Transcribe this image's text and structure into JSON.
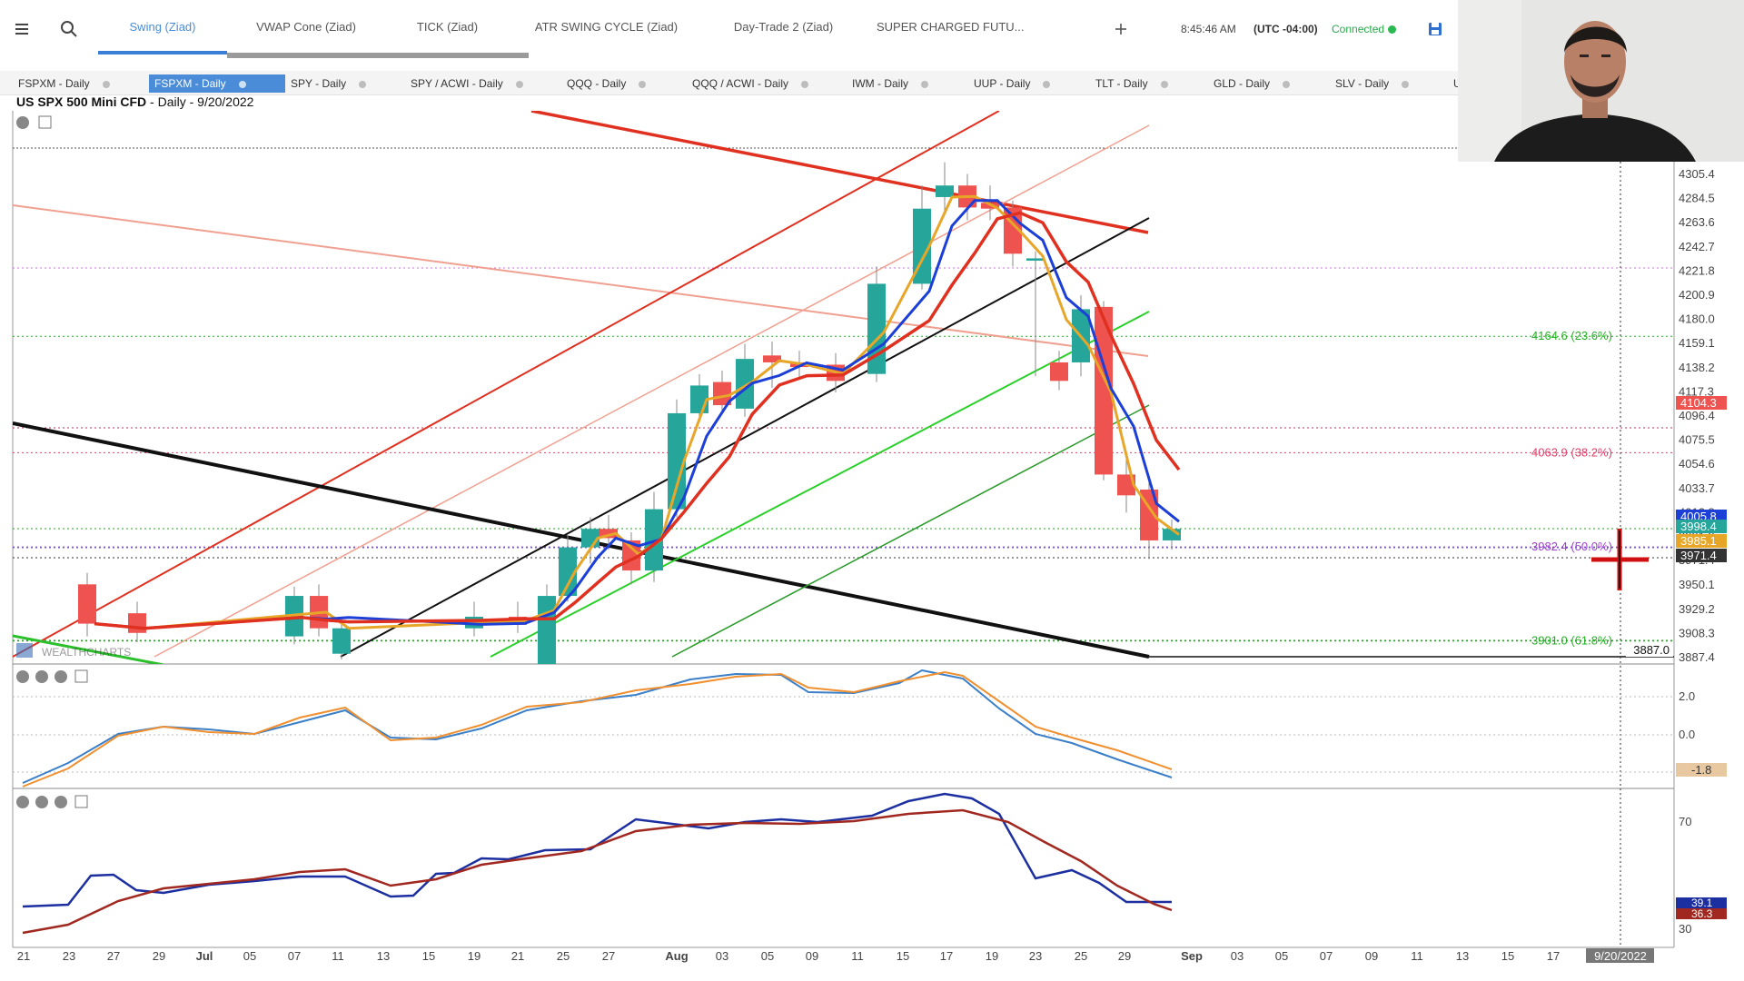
{
  "toolbar": {
    "menu_icon": "hamburger-icon",
    "search_icon": "search-icon",
    "tabs": [
      {
        "label": "Swing (Ziad)",
        "active": true
      },
      {
        "label": "VWAP Cone (Ziad)",
        "active": false
      },
      {
        "label": "TICK (Ziad)",
        "active": false
      },
      {
        "label": "ATR SWING CYCLE (Ziad)",
        "active": false
      },
      {
        "label": "Day-Trade 2 (Ziad)",
        "active": false
      },
      {
        "label": "SUPER CHARGED FUTU...",
        "active": false
      }
    ],
    "add_tab_icon": "plus-icon",
    "time": "8:45:46 AM",
    "timezone": "(UTC -04:00)",
    "connection": "Connected",
    "save_icon": "save-icon"
  },
  "symbols": [
    {
      "label": "FSPXM - Daily",
      "active": false
    },
    {
      "label": "FSPXM - Daily",
      "active": true
    },
    {
      "label": "SPY - Daily",
      "active": false
    },
    {
      "label": "SPY / ACWI - Daily",
      "active": false
    },
    {
      "label": "QQQ - Daily",
      "active": false
    },
    {
      "label": "QQQ / ACWI - Daily",
      "active": false
    },
    {
      "label": "IWM - Daily",
      "active": false
    },
    {
      "label": "UUP - Daily",
      "active": false
    },
    {
      "label": "TLT - Daily",
      "active": false
    },
    {
      "label": "GLD - Daily",
      "active": false
    },
    {
      "label": "SLV - Daily",
      "active": false
    },
    {
      "label": "U",
      "active": false
    }
  ],
  "chart": {
    "instrument": "US SPX 500 Mini CFD",
    "period": " - Daily - 9/20/2022",
    "watermark": "WEALTHCHARTS",
    "colors": {
      "up": "#26a69a",
      "down": "#ef5350",
      "ema_fast": "#e8a628",
      "ema_mid": "#1c3fd8",
      "ema_slow": "#e03020"
    }
  },
  "chart_data": {
    "type": "candlestick",
    "x_ticks": [
      "21",
      "23",
      "27",
      "29",
      "Jul",
      "05",
      "07",
      "11",
      "13",
      "15",
      "19",
      "21",
      "25",
      "27",
      "Aug",
      "03",
      "05",
      "09",
      "11",
      "15",
      "17",
      "19",
      "23",
      "25",
      "29",
      "Sep",
      "03",
      "05",
      "07",
      "09",
      "11",
      "13",
      "15",
      "17"
    ],
    "y_ticks": [
      4305.4,
      4284.5,
      4263.6,
      4242.7,
      4221.8,
      4200.9,
      4180.0,
      4159.1,
      4138.2,
      4117.3,
      4096.4,
      4075.5,
      4054.6,
      4033.7,
      4012.8,
      3991.9,
      3971.4,
      3950.1,
      3929.2,
      3908.3,
      3887.4
    ],
    "ylim": [
      3887.4,
      4305.4
    ],
    "price_labels": [
      {
        "value": "4104.3",
        "color": "#ef5350"
      },
      {
        "value": "4005.8",
        "color": "#1c3fd8"
      },
      {
        "value": "3998.4",
        "color": "#26a69a"
      },
      {
        "value": "3985.1",
        "color": "#e8a628"
      },
      {
        "value": "3971.4",
        "color": "#333333"
      }
    ],
    "fib_levels": [
      {
        "label": "4164.6 (23.6%)",
        "value": 4164.6,
        "color": "#22b022"
      },
      {
        "label": "4063.9 (38.2%)",
        "value": 4063.9,
        "color": "#e0406a"
      },
      {
        "label": "3982.4 (50.0%)",
        "value": 3982.4,
        "color": "#a040d0"
      },
      {
        "label": "3901.0 (61.8%)",
        "value": 3901.0,
        "color": "#22b022"
      }
    ],
    "support_label": "3887.0",
    "cursor_date": "9/20/2022",
    "candles": [
      [
        3950,
        3916,
        3960,
        3905
      ],
      [
        3925,
        3908,
        3935,
        3900
      ],
      [
        3905,
        3940,
        3948,
        3898
      ],
      [
        3940,
        3912,
        3950,
        3905
      ],
      [
        3890,
        3912,
        3920,
        3885
      ],
      [
        3912,
        3922,
        3935,
        3905
      ],
      [
        3922,
        3915,
        3935,
        3908
      ],
      [
        3880,
        3940,
        3950,
        3875
      ],
      [
        3940,
        3982,
        3992,
        3935
      ],
      [
        3982,
        3998,
        4008,
        3968
      ],
      [
        3998,
        3990,
        4010,
        3980
      ],
      [
        3988,
        3962,
        3995,
        3950
      ],
      [
        3962,
        4015,
        4030,
        3952
      ],
      [
        4015,
        4098,
        4110,
        4008
      ],
      [
        4098,
        4122,
        4132,
        4090
      ],
      [
        4125,
        4105,
        4135,
        4098
      ],
      [
        4102,
        4145,
        4158,
        4095
      ],
      [
        4148,
        4142,
        4160,
        4120
      ],
      [
        4142,
        4138,
        4152,
        4128
      ],
      [
        4140,
        4126,
        4150,
        4116
      ],
      [
        4132,
        4210,
        4225,
        4125
      ],
      [
        4210,
        4275,
        4295,
        4205
      ],
      [
        4285,
        4295,
        4315,
        4270
      ],
      [
        4295,
        4276,
        4305,
        4265
      ],
      [
        4280,
        4275,
        4295,
        4265
      ],
      [
        4276,
        4236,
        4282,
        4225
      ],
      [
        4230,
        4232,
        4238,
        4130
      ],
      [
        4142,
        4126,
        4152,
        4118
      ],
      [
        4142,
        4188,
        4200,
        4130
      ],
      [
        4190,
        4045,
        4195,
        4040
      ],
      [
        4045,
        4027,
        4058,
        4012
      ],
      [
        4032,
        3988,
        4040,
        3972
      ],
      [
        3988,
        3998,
        4006,
        3980
      ]
    ],
    "macd": {
      "series": [
        {
          "name": "macd"
        },
        {
          "name": "signal"
        }
      ],
      "y_ticks": [
        2.0,
        0.0
      ],
      "last_label": "-1.8"
    },
    "oscillator": {
      "series": [
        {
          "name": "fast"
        },
        {
          "name": "slow"
        }
      ],
      "y_ticks": [
        70,
        30
      ],
      "last_labels": [
        "39.1",
        "36.3"
      ]
    }
  }
}
